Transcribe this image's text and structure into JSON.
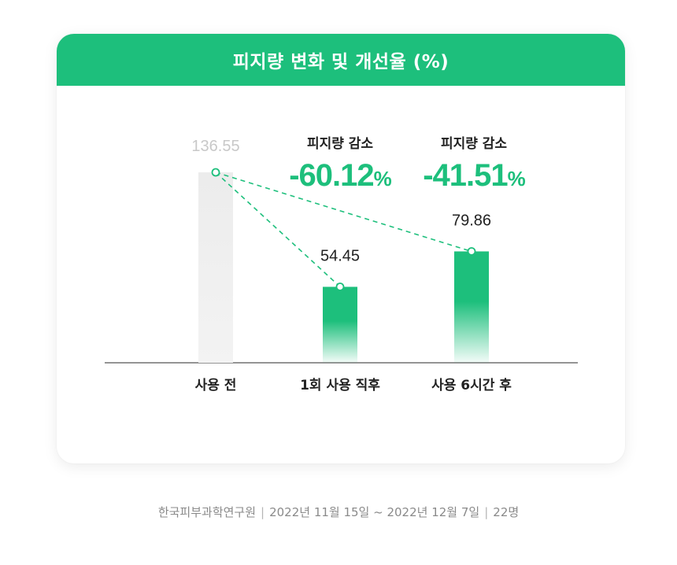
{
  "header": {
    "title": "피지량 변화 및 개선율 (%)"
  },
  "chart_data": {
    "type": "bar",
    "categories": [
      "사용 전",
      "1회 사용 직후",
      "사용 6시간 후"
    ],
    "values": [
      136.55,
      54.45,
      79.86
    ],
    "value_labels": [
      "136.55",
      "54.45",
      "79.86"
    ],
    "ylim": [
      0,
      136.55
    ],
    "bar_colors": [
      "#eeeeee",
      "#1dbf7c",
      "#1dbf7c"
    ],
    "accent_color": "#1dbf7c",
    "annotations": [
      {
        "target": "1회 사용 직후",
        "label": "피지량 감소",
        "sign": "-",
        "value": "60.12",
        "unit": "%"
      },
      {
        "target": "사용 6시간 후",
        "label": "피지량 감소",
        "sign": "-",
        "value": "41.51",
        "unit": "%"
      }
    ]
  },
  "footer": {
    "source": "한국피부과학연구원",
    "period": "2022년 11월 15일 ~ 2022년 12월 7일",
    "sample": "22명"
  }
}
